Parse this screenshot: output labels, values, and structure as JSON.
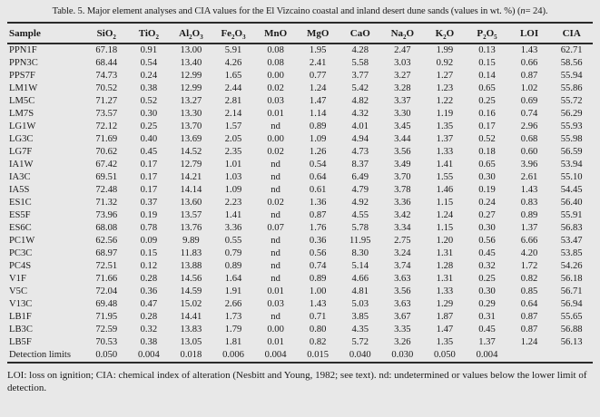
{
  "colors": {
    "page_background": "#e8e8e8",
    "text": "#1a1a1a",
    "rule": "#2a2a2a"
  },
  "title": {
    "pre": "Table. 5. Major element analyses and CIA values for the El Vizcaino coastal and inland desert dune sands (values in wt. %) (",
    "italic": "n",
    "post": "= 24)."
  },
  "table": {
    "columns": [
      {
        "name": "sample",
        "label": [
          [
            "t",
            "Sample"
          ]
        ]
      },
      {
        "name": "sio2",
        "label": [
          [
            "t",
            "SiO"
          ],
          [
            "s",
            "2"
          ]
        ]
      },
      {
        "name": "tio2",
        "label": [
          [
            "t",
            "TiO"
          ],
          [
            "s",
            "2"
          ]
        ]
      },
      {
        "name": "al2o3",
        "label": [
          [
            "t",
            "Al"
          ],
          [
            "s",
            "2"
          ],
          [
            "t",
            "O"
          ],
          [
            "s",
            "3"
          ]
        ]
      },
      {
        "name": "fe2o3",
        "label": [
          [
            "t",
            "Fe"
          ],
          [
            "s",
            "2"
          ],
          [
            "t",
            "O"
          ],
          [
            "s",
            "3"
          ]
        ]
      },
      {
        "name": "mno",
        "label": [
          [
            "t",
            "MnO"
          ]
        ]
      },
      {
        "name": "mgo",
        "label": [
          [
            "t",
            "MgO"
          ]
        ]
      },
      {
        "name": "cao",
        "label": [
          [
            "t",
            "CaO"
          ]
        ]
      },
      {
        "name": "na2o",
        "label": [
          [
            "t",
            "Na"
          ],
          [
            "s",
            "2"
          ],
          [
            "t",
            "O"
          ]
        ]
      },
      {
        "name": "k2o",
        "label": [
          [
            "t",
            "K"
          ],
          [
            "s",
            "2"
          ],
          [
            "t",
            "O"
          ]
        ]
      },
      {
        "name": "p2o5",
        "label": [
          [
            "t",
            "P"
          ],
          [
            "s",
            "2"
          ],
          [
            "t",
            "O"
          ],
          [
            "s",
            "5"
          ]
        ]
      },
      {
        "name": "loi",
        "label": [
          [
            "t",
            "LOI"
          ]
        ]
      },
      {
        "name": "cia",
        "label": [
          [
            "t",
            "CIA"
          ]
        ]
      }
    ],
    "rows": [
      {
        "sample": "PPN1F",
        "values": [
          "67.18",
          "0.91",
          "13.00",
          "5.91",
          "0.08",
          "1.95",
          "4.28",
          "2.47",
          "1.99",
          "0.13",
          "1.43",
          "62.71"
        ]
      },
      {
        "sample": "PPN3C",
        "values": [
          "68.44",
          "0.54",
          "13.40",
          "4.26",
          "0.08",
          "2.41",
          "5.58",
          "3.03",
          "0.92",
          "0.15",
          "0.66",
          "58.56"
        ]
      },
      {
        "sample": "PPS7F",
        "values": [
          "74.73",
          "0.24",
          "12.99",
          "1.65",
          "0.00",
          "0.77",
          "3.77",
          "3.27",
          "1.27",
          "0.14",
          "0.87",
          "55.94"
        ]
      },
      {
        "sample": "LM1W",
        "values": [
          "70.52",
          "0.38",
          "12.99",
          "2.44",
          "0.02",
          "1.24",
          "5.42",
          "3.28",
          "1.23",
          "0.65",
          "1.02",
          "55.86"
        ]
      },
      {
        "sample": "LM5C",
        "values": [
          "71.27",
          "0.52",
          "13.27",
          "2.81",
          "0.03",
          "1.47",
          "4.82",
          "3.37",
          "1.22",
          "0.25",
          "0.69",
          "55.72"
        ]
      },
      {
        "sample": "LM7S",
        "values": [
          "73.57",
          "0.30",
          "13.30",
          "2.14",
          "0.01",
          "1.14",
          "4.32",
          "3.30",
          "1.19",
          "0.16",
          "0.74",
          "56.29"
        ]
      },
      {
        "sample": "LG1W",
        "values": [
          "72.12",
          "0.25",
          "13.70",
          "1.57",
          "nd",
          "0.89",
          "4.01",
          "3.45",
          "1.35",
          "0.17",
          "2.96",
          "55.93"
        ]
      },
      {
        "sample": "LG3C",
        "values": [
          "71.69",
          "0.40",
          "13.69",
          "2.05",
          "0.00",
          "1.09",
          "4.94",
          "3.44",
          "1.37",
          "0.52",
          "0.68",
          "55.98"
        ]
      },
      {
        "sample": "LG7F",
        "values": [
          "70.62",
          "0.45",
          "14.52",
          "2.35",
          "0.02",
          "1.26",
          "4.73",
          "3.56",
          "1.33",
          "0.18",
          "0.60",
          "56.59"
        ]
      },
      {
        "sample": "IA1W",
        "values": [
          "67.42",
          "0.17",
          "12.79",
          "1.01",
          "nd",
          "0.54",
          "8.37",
          "3.49",
          "1.41",
          "0.65",
          "3.96",
          "53.94"
        ]
      },
      {
        "sample": "IA3C",
        "values": [
          "69.51",
          "0.17",
          "14.21",
          "1.03",
          "nd",
          "0.64",
          "6.49",
          "3.70",
          "1.55",
          "0.30",
          "2.61",
          "55.10"
        ]
      },
      {
        "sample": "IA5S",
        "values": [
          "72.48",
          "0.17",
          "14.14",
          "1.09",
          "nd",
          "0.61",
          "4.79",
          "3.78",
          "1.46",
          "0.19",
          "1.43",
          "54.45"
        ]
      },
      {
        "sample": "ES1C",
        "values": [
          "71.32",
          "0.37",
          "13.60",
          "2.23",
          "0.02",
          "1.36",
          "4.92",
          "3.36",
          "1.15",
          "0.24",
          "0.83",
          "56.40"
        ]
      },
      {
        "sample": "ES5F",
        "values": [
          "73.96",
          "0.19",
          "13.57",
          "1.41",
          "nd",
          "0.87",
          "4.55",
          "3.42",
          "1.24",
          "0.27",
          "0.89",
          "55.91"
        ]
      },
      {
        "sample": "ES6C",
        "values": [
          "68.08",
          "0.78",
          "13.76",
          "3.36",
          "0.07",
          "1.76",
          "5.78",
          "3.34",
          "1.15",
          "0.30",
          "1.37",
          "56.83"
        ]
      },
      {
        "sample": "PC1W",
        "values": [
          "62.56",
          "0.09",
          "9.89",
          "0.55",
          "nd",
          "0.36",
          "11.95",
          "2.75",
          "1.20",
          "0.56",
          "6.66",
          "53.47"
        ]
      },
      {
        "sample": "PC3C",
        "values": [
          "68.97",
          "0.15",
          "11.83",
          "0.79",
          "nd",
          "0.56",
          "8.30",
          "3.24",
          "1.31",
          "0.45",
          "4.20",
          "53.85"
        ]
      },
      {
        "sample": "PC4S",
        "values": [
          "72.51",
          "0.12",
          "13.88",
          "0.89",
          "nd",
          "0.74",
          "5.14",
          "3.74",
          "1.28",
          "0.32",
          "1.72",
          "54.26"
        ]
      },
      {
        "sample": "V1F",
        "values": [
          "71.66",
          "0.28",
          "14.56",
          "1.64",
          "nd",
          "0.89",
          "4.66",
          "3.63",
          "1.31",
          "0.25",
          "0.82",
          "56.18"
        ]
      },
      {
        "sample": "V5C",
        "values": [
          "72.04",
          "0.36",
          "14.59",
          "1.91",
          "0.01",
          "1.00",
          "4.81",
          "3.56",
          "1.33",
          "0.30",
          "0.85",
          "56.71"
        ]
      },
      {
        "sample": "V13C",
        "values": [
          "69.48",
          "0.47",
          "15.02",
          "2.66",
          "0.03",
          "1.43",
          "5.03",
          "3.63",
          "1.29",
          "0.29",
          "0.64",
          "56.94"
        ]
      },
      {
        "sample": "LB1F",
        "values": [
          "71.95",
          "0.28",
          "14.41",
          "1.73",
          "nd",
          "0.71",
          "3.85",
          "3.67",
          "1.87",
          "0.31",
          "0.87",
          "55.65"
        ]
      },
      {
        "sample": "LB3C",
        "values": [
          "72.59",
          "0.32",
          "13.83",
          "1.79",
          "0.00",
          "0.80",
          "4.35",
          "3.35",
          "1.47",
          "0.45",
          "0.87",
          "56.88"
        ]
      },
      {
        "sample": "LB5F",
        "values": [
          "70.53",
          "0.38",
          "13.05",
          "1.81",
          "0.01",
          "0.82",
          "5.72",
          "3.26",
          "1.35",
          "1.37",
          "1.24",
          "56.13"
        ]
      },
      {
        "sample": "Detection limits",
        "values": [
          "0.050",
          "0.004",
          "0.018",
          "0.006",
          "0.004",
          "0.015",
          "0.040",
          "0.030",
          "0.050",
          "0.004",
          "",
          ""
        ]
      }
    ]
  },
  "footnote": "LOI: loss on ignition; CIA: chemical index of alteration (Nesbitt and Young, 1982; see text). nd: undetermined or values below the lower limit of detection."
}
